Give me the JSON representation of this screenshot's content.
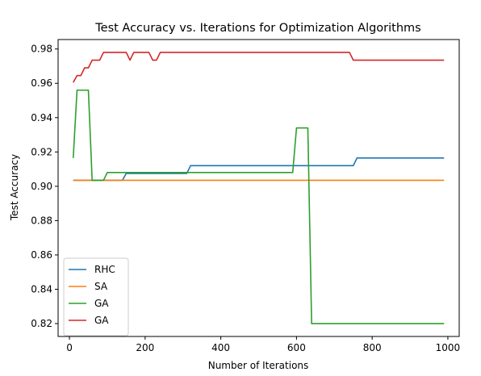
{
  "chart_data": {
    "type": "line",
    "title": "Test Accuracy vs. Iterations for Optimization Algorithms",
    "xlabel": "Number of Iterations",
    "ylabel": "Test Accuracy",
    "xlim": [
      -30,
      1030
    ],
    "ylim": [
      0.8125,
      0.9855
    ],
    "xticks": [
      0,
      200,
      400,
      600,
      800,
      1000
    ],
    "yticks": [
      0.82,
      0.84,
      0.86,
      0.88,
      0.9,
      0.92,
      0.94,
      0.96,
      0.98
    ],
    "legend_position": "lower-left",
    "grid": false,
    "series": [
      {
        "name": "RHC",
        "color": "#1f77b4",
        "x": [
          10,
          140,
          150,
          310,
          320,
          750,
          760,
          990
        ],
        "y": [
          0.9035,
          0.9035,
          0.9075,
          0.9075,
          0.912,
          0.912,
          0.9165,
          0.9165
        ]
      },
      {
        "name": "SA",
        "color": "#ff7f0e",
        "x": [
          10,
          990
        ],
        "y": [
          0.9035,
          0.9035
        ]
      },
      {
        "name": "GA",
        "color": "#2ca02c",
        "x": [
          10,
          20,
          50,
          60,
          90,
          100,
          590,
          600,
          630,
          640,
          990
        ],
        "y": [
          0.9165,
          0.956,
          0.956,
          0.9035,
          0.9035,
          0.908,
          0.908,
          0.934,
          0.934,
          0.82,
          0.82
        ]
      },
      {
        "name": "GA",
        "color": "#d62728",
        "x": [
          10,
          20,
          30,
          40,
          50,
          60,
          80,
          90,
          140,
          150,
          160,
          170,
          200,
          210,
          220,
          230,
          240,
          740,
          750,
          990
        ],
        "y": [
          0.9605,
          0.9645,
          0.9645,
          0.969,
          0.969,
          0.9735,
          0.9735,
          0.978,
          0.978,
          0.978,
          0.9735,
          0.978,
          0.978,
          0.978,
          0.9735,
          0.9735,
          0.978,
          0.978,
          0.9735,
          0.9735
        ]
      }
    ]
  }
}
